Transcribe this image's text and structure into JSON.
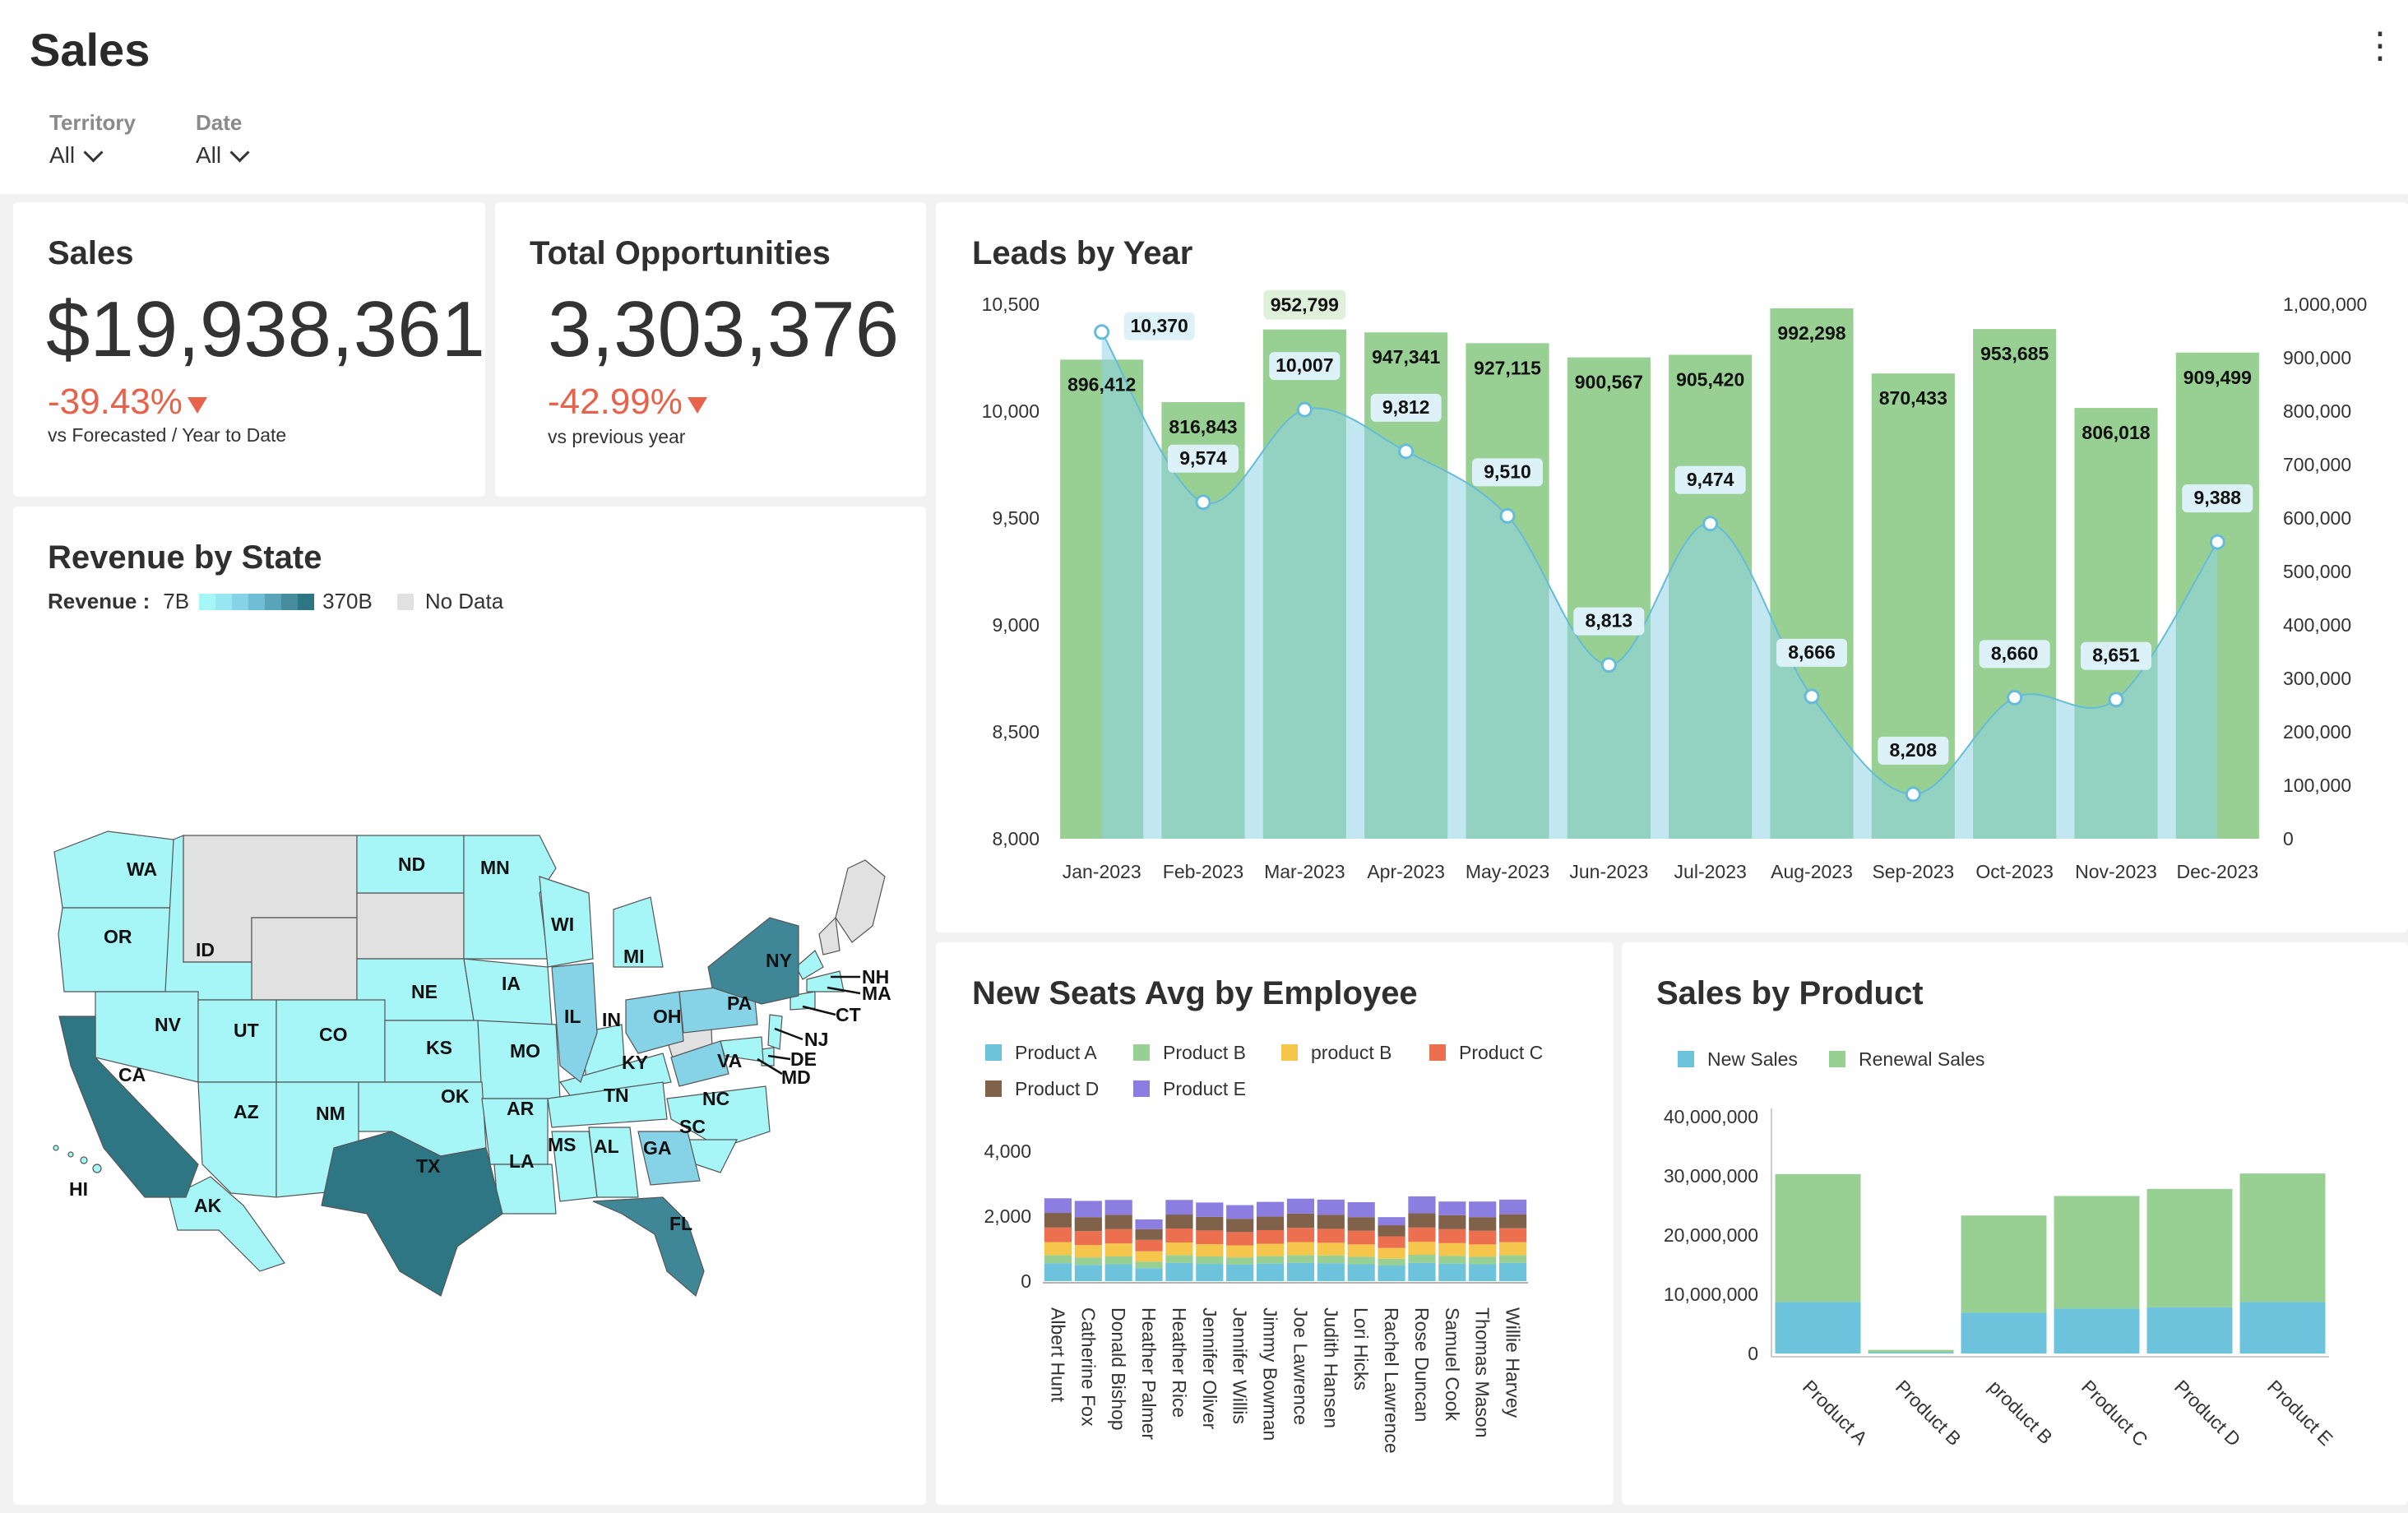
{
  "header": {
    "title": "Sales",
    "menu_icon": "more-vertical-icon",
    "filters": [
      {
        "label": "Territory",
        "value": "All"
      },
      {
        "label": "Date",
        "value": "All"
      }
    ]
  },
  "kpis": {
    "sales": {
      "title": "Sales",
      "value": "$19,938,361",
      "delta": "-39.43%",
      "sub": "vs Forecasted / Year to Date"
    },
    "opportunities": {
      "title": "Total Opportunities",
      "value": "3,303,376",
      "delta": "-42.99%",
      "sub": "vs previous year"
    }
  },
  "colors": {
    "accent_negative": "#e8624b",
    "bar_green": "#98cf92",
    "area_blue": "#7fcde4",
    "map_low": "#a6f5f7",
    "map_high": "#2f7685",
    "no_data": "#e1e1e1"
  },
  "revenue_map": {
    "title": "Revenue by State",
    "legend_label": "Revenue :",
    "legend_min": "7B",
    "legend_max": "370B",
    "no_data_label": "No Data",
    "states": [
      "WA",
      "OR",
      "ID",
      "ND",
      "MN",
      "WI",
      "MI",
      "NY",
      "NH",
      "MA",
      "CT",
      "NJ",
      "DE",
      "MD",
      "PA",
      "OH",
      "IN",
      "IL",
      "IA",
      "NE",
      "NV",
      "UT",
      "CO",
      "KS",
      "MO",
      "KY",
      "VA",
      "CA",
      "AZ",
      "NM",
      "OK",
      "AR",
      "TN",
      "NC",
      "SC",
      "GA",
      "AL",
      "MS",
      "LA",
      "TX",
      "FL",
      "AK",
      "HI"
    ]
  },
  "chart_data": [
    {
      "type": "bar",
      "title": "Leads by Year",
      "categories": [
        "Jan-2023",
        "Feb-2023",
        "Mar-2023",
        "Apr-2023",
        "May-2023",
        "Jun-2023",
        "Jul-2023",
        "Aug-2023",
        "Sep-2023",
        "Oct-2023",
        "Nov-2023",
        "Dec-2023"
      ],
      "series": [
        {
          "axis": "right",
          "type": "bar",
          "values": [
            896412,
            816843,
            952799,
            947341,
            927115,
            900567,
            905420,
            992298,
            870433,
            953685,
            806018,
            909499
          ]
        },
        {
          "axis": "left",
          "type": "area",
          "values": [
            10370,
            9574,
            10007,
            9812,
            9510,
            8813,
            9474,
            8666,
            8208,
            8660,
            8651,
            9388
          ]
        }
      ],
      "ylim_left": [
        8000,
        10500
      ],
      "ylim_right": [
        0,
        1000000
      ],
      "left_ticks": [
        "10,500",
        "10,000",
        "9,500",
        "9,000",
        "8,500",
        "8,000"
      ],
      "right_ticks": [
        "1,000,000",
        "900,000",
        "800,000",
        "700,000",
        "600,000",
        "500,000",
        "400,000",
        "300,000",
        "200,000",
        "100,000",
        "0"
      ],
      "bar_labels": [
        "896,412",
        "816,843",
        "952,799",
        "947,341",
        "927,115",
        "900,567",
        "905,420",
        "992,298",
        "870,433",
        "953,685",
        "806,018",
        "909,499"
      ],
      "line_labels": [
        "10,370",
        "9,574",
        "10,007",
        "9,812",
        "9,510",
        "8,813",
        "9,474",
        "8,666",
        "8,208",
        "8,660",
        "8,651",
        "9,388"
      ]
    },
    {
      "type": "bar",
      "stacked": true,
      "title": "New Seats Avg by Employee",
      "categories": [
        "Albert Hunt",
        "Catherine Fox",
        "Donald Bishop",
        "Heather Palmer",
        "Heather Rice",
        "Jennifer Oliver",
        "Jennifer Willis",
        "Jimmy Bowman",
        "Joe Lawrence",
        "Judith Hansen",
        "Lori Hicks",
        "Rachel Lawrence",
        "Rose Duncan",
        "Samuel Cook",
        "Thomas Mason",
        "Willie Harvey"
      ],
      "series": [
        {
          "name": "Product A",
          "color": "#6cc3db",
          "values": [
            550,
            500,
            520,
            400,
            560,
            530,
            510,
            540,
            560,
            550,
            520,
            480,
            560,
            540,
            520,
            560
          ]
        },
        {
          "name": "Product B",
          "color": "#98cf92",
          "values": [
            250,
            230,
            240,
            200,
            240,
            230,
            220,
            230,
            240,
            240,
            230,
            210,
            250,
            240,
            230,
            240
          ]
        },
        {
          "name": "product B",
          "color": "#f5c64b",
          "values": [
            400,
            380,
            400,
            320,
            390,
            380,
            370,
            380,
            400,
            390,
            380,
            330,
            400,
            390,
            380,
            400
          ]
        },
        {
          "name": "Product C",
          "color": "#ec6f4f",
          "values": [
            450,
            430,
            440,
            350,
            430,
            420,
            410,
            420,
            440,
            430,
            420,
            360,
            440,
            430,
            420,
            430
          ]
        },
        {
          "name": "Product D",
          "color": "#80614a",
          "values": [
            450,
            430,
            440,
            330,
            430,
            420,
            410,
            420,
            440,
            430,
            420,
            340,
            440,
            430,
            420,
            430
          ]
        },
        {
          "name": "Product E",
          "color": "#8c7ee0",
          "values": [
            450,
            500,
            460,
            300,
            450,
            440,
            420,
            450,
            460,
            470,
            460,
            250,
            520,
            420,
            480,
            450
          ]
        }
      ],
      "yticks": [
        "4,000",
        "2,000",
        "0"
      ],
      "ylim": [
        0,
        4000
      ]
    },
    {
      "type": "bar",
      "stacked": true,
      "title": "Sales by Product",
      "categories": [
        "Product A",
        "Product B",
        "product B",
        "Product C",
        "Product D",
        "Product E"
      ],
      "series": [
        {
          "name": "New Sales",
          "color": "#6cc3db",
          "values": [
            8700000,
            200000,
            6900000,
            7600000,
            7800000,
            8700000
          ]
        },
        {
          "name": "Renewal Sales",
          "color": "#98cf92",
          "values": [
            21600000,
            400000,
            16400000,
            19000000,
            20000000,
            21700000
          ]
        }
      ],
      "yticks": [
        "40,000,000",
        "30,000,000",
        "20,000,000",
        "10,000,000",
        "0"
      ],
      "ylim": [
        0,
        40000000
      ]
    }
  ]
}
